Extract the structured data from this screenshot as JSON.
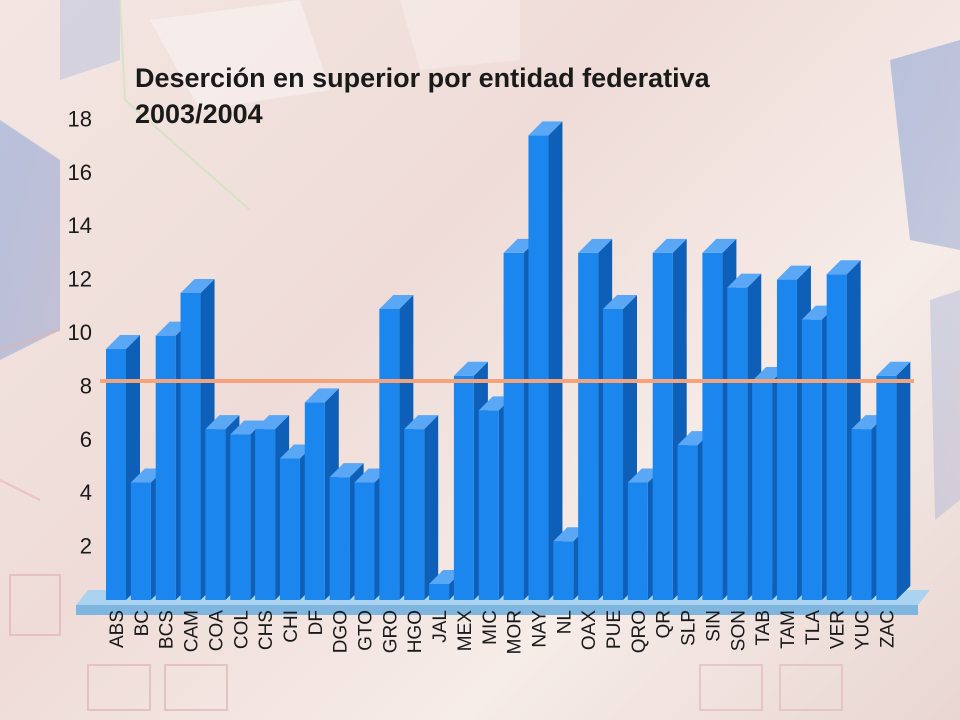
{
  "chart_data": {
    "type": "bar",
    "title": "Deserción en superior por entidad federativa 2003/2004",
    "categories": [
      "ABS",
      "BC",
      "BCS",
      "CAM",
      "COA",
      "COL",
      "CHS",
      "CHI",
      "DF",
      "DGO",
      "GTO",
      "GRO",
      "HGO",
      "JAL",
      "MEX",
      "MIC",
      "MOR",
      "NAY",
      "NL",
      "OAX",
      "PUE",
      "QRO",
      "QR",
      "SLP",
      "SIN",
      "SON",
      "TAB",
      "TAM",
      "TLA",
      "VER",
      "YUC",
      "ZAC"
    ],
    "values": [
      9.4,
      4.4,
      9.9,
      11.5,
      6.4,
      6.2,
      6.4,
      5.3,
      7.4,
      4.6,
      4.4,
      10.9,
      6.4,
      0.6,
      8.4,
      7.1,
      13.0,
      17.4,
      2.2,
      13.0,
      10.9,
      4.4,
      13.0,
      5.8,
      13.0,
      11.7,
      8.2,
      12.0,
      10.5,
      12.2,
      6.4,
      8.4
    ],
    "yticks": [
      2,
      4,
      6,
      8,
      10,
      12,
      14,
      16,
      18
    ],
    "reference_line": 8.2,
    "colors": {
      "bar_front": "#1a86ee",
      "bar_side": "#0e5fb8",
      "bar_top": "#5aa8f5",
      "reference": "#f4a37a"
    },
    "grid": false,
    "legend": "none"
  }
}
